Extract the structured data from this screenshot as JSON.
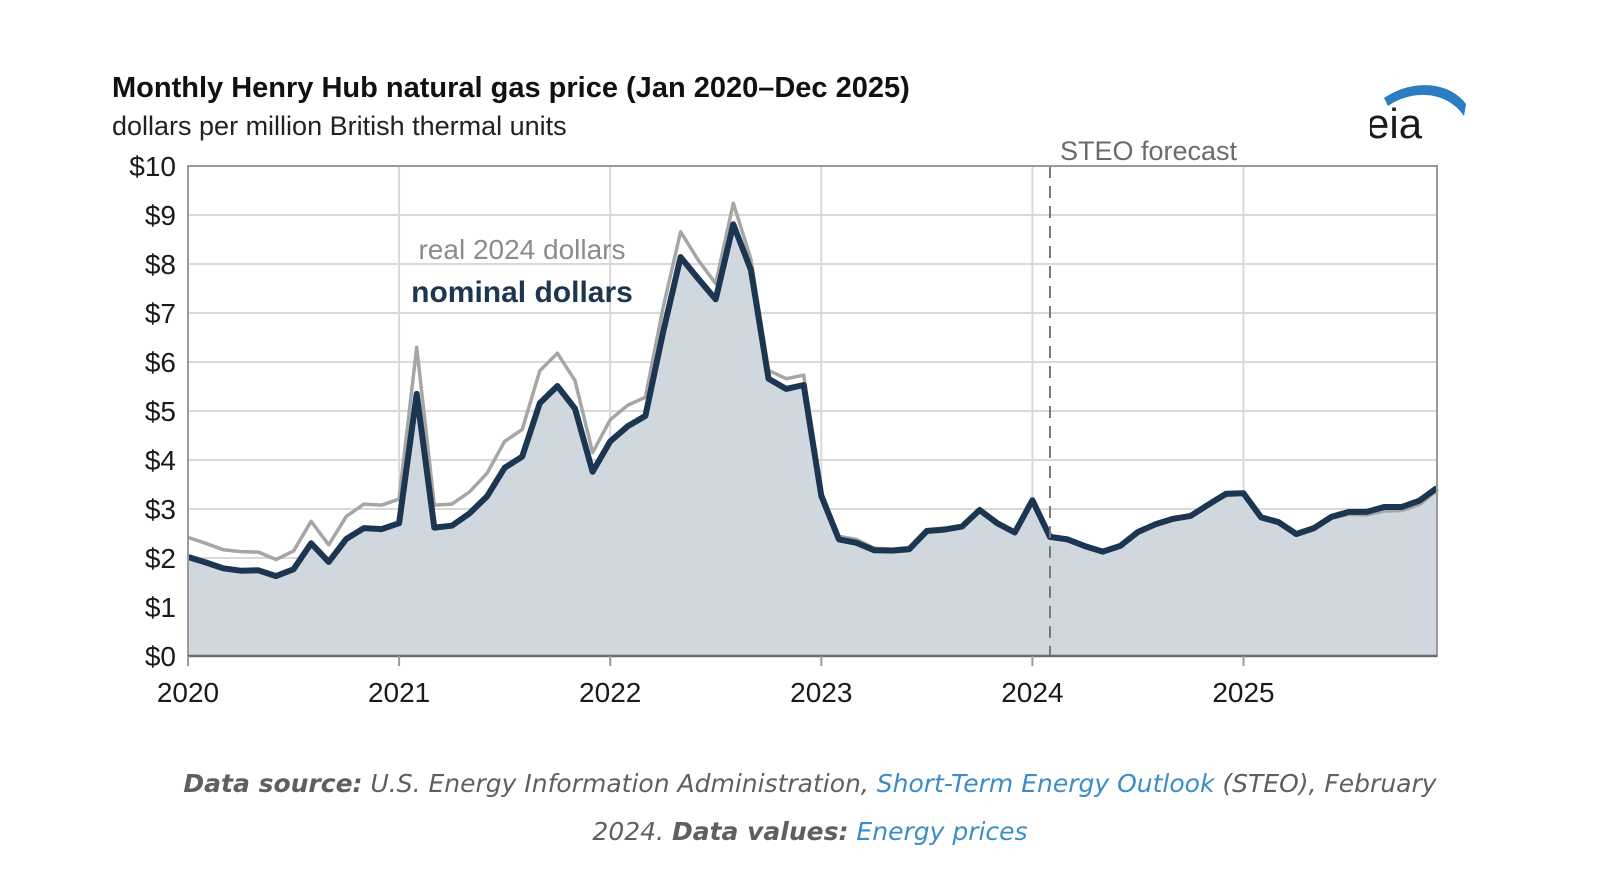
{
  "title": "Monthly Henry Hub natural gas price (Jan 2020–Dec 2025)",
  "subtitle": "dollars per million British thermal units",
  "logo_text": "eia",
  "source": {
    "label1": "Data source:",
    "text1": " U.S. Energy Information Administration, ",
    "link1": "Short-Term Energy Outlook",
    "text2": " (STEO), February 2024. ",
    "label2": "Data values:",
    "link2": "Energy prices"
  },
  "colors": {
    "nominal": "#1c3652",
    "real": "#a6a6a6",
    "area": "#d0d7df",
    "grid": "#d9d9d9",
    "axis": "#9a9a9a",
    "link": "#3c8dc5"
  },
  "chart_data": {
    "type": "area",
    "forecast_label": "STEO forecast",
    "forecast_start": "2024-02",
    "ylim": [
      0,
      10
    ],
    "yticks": [
      "$0",
      "$1",
      "$2",
      "$3",
      "$4",
      "$5",
      "$6",
      "$7",
      "$8",
      "$9",
      "$10"
    ],
    "xlim": [
      "2020-01",
      "2025-12"
    ],
    "xticks": [
      "2020",
      "2021",
      "2022",
      "2023",
      "2024",
      "2025"
    ],
    "grid": true,
    "series": [
      {
        "name": "real 2024 dollars",
        "values": [
          2.42,
          2.3,
          2.17,
          2.13,
          2.12,
          1.97,
          2.14,
          2.75,
          2.27,
          2.85,
          3.1,
          3.08,
          3.2,
          6.3,
          3.08,
          3.1,
          3.35,
          3.73,
          4.38,
          4.62,
          5.82,
          6.18,
          5.62,
          4.15,
          4.82,
          5.12,
          5.28,
          7.1,
          8.66,
          8.08,
          7.6,
          9.24,
          8.1,
          5.83,
          5.66,
          5.73,
          3.35,
          2.44,
          2.38,
          2.2,
          2.18,
          2.22,
          2.58,
          2.61,
          2.66,
          3.0,
          2.72,
          2.55,
          3.2,
          2.45,
          2.4,
          2.26,
          2.14,
          2.26,
          2.54,
          2.7,
          2.8,
          2.85,
          3.07,
          3.27,
          3.3,
          2.8,
          2.7,
          2.46,
          2.58,
          2.81,
          2.89,
          2.88,
          2.96,
          2.97,
          3.09,
          3.38
        ]
      },
      {
        "name": "nominal dollars",
        "values": [
          2.02,
          1.91,
          1.79,
          1.74,
          1.75,
          1.63,
          1.77,
          2.3,
          1.92,
          2.39,
          2.61,
          2.59,
          2.71,
          5.35,
          2.62,
          2.66,
          2.91,
          3.26,
          3.84,
          4.07,
          5.16,
          5.51,
          5.05,
          3.76,
          4.38,
          4.69,
          4.9,
          6.6,
          8.14,
          7.7,
          7.28,
          8.81,
          7.88,
          5.66,
          5.45,
          5.53,
          3.27,
          2.38,
          2.31,
          2.16,
          2.15,
          2.18,
          2.55,
          2.58,
          2.64,
          2.98,
          2.71,
          2.52,
          3.18,
          2.43,
          2.38,
          2.24,
          2.13,
          2.25,
          2.53,
          2.69,
          2.8,
          2.86,
          3.09,
          3.31,
          3.32,
          2.83,
          2.73,
          2.49,
          2.61,
          2.84,
          2.94,
          2.94,
          3.04,
          3.04,
          3.17,
          3.43
        ]
      }
    ]
  }
}
